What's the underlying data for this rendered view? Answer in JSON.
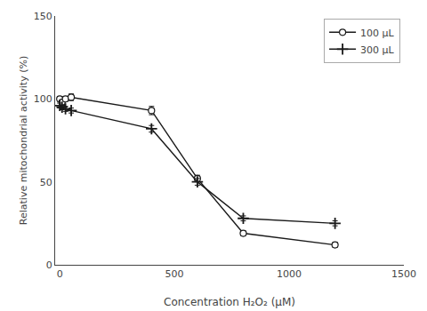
{
  "chart_data": {
    "type": "line",
    "xlabel": "Concentration H₂O₂ (μM)",
    "ylabel": "Relative mitochondrial activity (%)",
    "x": [
      0,
      10,
      25,
      50,
      400,
      600,
      800,
      1200
    ],
    "series": [
      {
        "name": "100 μL",
        "color": "#1a1a1a",
        "marker": "circle",
        "values": [
          100,
          98,
          100,
          101,
          93,
          52,
          19,
          12
        ],
        "yerr": [
          1.5,
          1.5,
          1.5,
          2,
          2.5,
          2,
          1.5,
          1.5
        ]
      },
      {
        "name": "300 μL",
        "color": "#1a1a1a",
        "marker": "plus",
        "values": [
          96,
          95,
          94,
          93,
          82,
          50,
          28,
          25
        ],
        "yerr": [
          1.5,
          1.5,
          1.5,
          1.5,
          2,
          2,
          1.5,
          1.5
        ]
      }
    ],
    "xlim": [
      -20,
      1500
    ],
    "ylim": [
      0,
      150
    ],
    "xticks": [
      0,
      500,
      1000,
      1500
    ],
    "yticks": [
      0,
      50,
      100,
      150
    ],
    "grid": false,
    "legend": "upper right"
  }
}
